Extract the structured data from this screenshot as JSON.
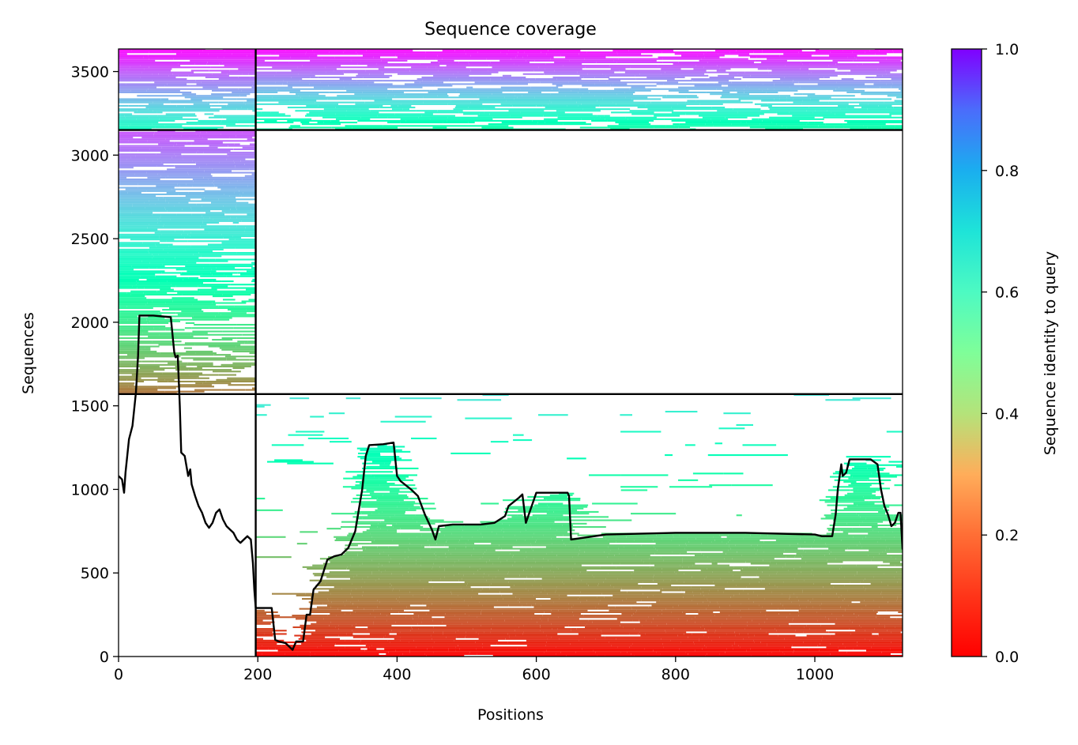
{
  "chart_data": {
    "type": "heatmap",
    "title": "Sequence coverage",
    "xlabel": "Positions",
    "ylabel": "Sequences",
    "xlim": [
      0,
      1126
    ],
    "ylim": [
      0,
      3635
    ],
    "x_ticks": [
      0,
      200,
      400,
      600,
      800,
      1000
    ],
    "y_ticks": [
      0,
      500,
      1000,
      1500,
      2000,
      2500,
      3000,
      3500
    ],
    "colorbar": {
      "label": "Sequence identity to query",
      "range": [
        0,
        1
      ],
      "ticks": [
        0.0,
        0.2,
        0.4,
        0.6,
        0.8,
        1.0
      ],
      "tick_labels": [
        "0.0",
        "0.2",
        "0.4",
        "0.6",
        "0.8",
        "1.0"
      ],
      "colormap": "rainbow_r"
    },
    "chain_boundaries": {
      "x": [
        197
      ],
      "y": [
        1570,
        3150
      ]
    },
    "msa_blocks": [
      {
        "x_range": [
          0,
          197
        ],
        "seq_range": [
          3150,
          3635
        ],
        "identity_range": [
          0.55,
          1.0
        ]
      },
      {
        "x_range": [
          197,
          1126
        ],
        "seq_range": [
          3150,
          3635
        ],
        "identity_range": [
          0.45,
          1.0
        ]
      },
      {
        "x_range": [
          0,
          197
        ],
        "seq_range": [
          1570,
          3150
        ],
        "identity_range": [
          0.15,
          0.9
        ]
      },
      {
        "x_range": [
          197,
          1126
        ],
        "seq_range": [
          0,
          1570
        ],
        "identity_range": [
          0.0,
          0.65
        ]
      }
    ],
    "coverage_line": {
      "x": [
        0,
        5,
        8,
        10,
        15,
        20,
        25,
        28,
        30,
        35,
        50,
        75,
        80,
        82,
        85,
        88,
        90,
        95,
        100,
        103,
        105,
        110,
        115,
        120,
        125,
        130,
        135,
        140,
        145,
        150,
        155,
        160,
        165,
        170,
        175,
        180,
        185,
        190,
        193,
        195,
        197,
        200,
        220,
        225,
        230,
        240,
        250,
        255,
        265,
        270,
        275,
        280,
        290,
        300,
        310,
        320,
        330,
        340,
        350,
        355,
        360,
        380,
        395,
        400,
        405,
        420,
        430,
        440,
        450,
        455,
        460,
        480,
        500,
        520,
        540,
        555,
        560,
        575,
        580,
        585,
        600,
        640,
        645,
        647,
        650,
        700,
        800,
        900,
        1000,
        1010,
        1015,
        1020,
        1025,
        1030,
        1033,
        1038,
        1040,
        1045,
        1050,
        1060,
        1080,
        1090,
        1095,
        1100,
        1105,
        1110,
        1115,
        1120,
        1123,
        1126
      ],
      "y": [
        1080,
        1060,
        980,
        1100,
        1300,
        1380,
        1580,
        1800,
        2040,
        2040,
        2040,
        2030,
        1820,
        1790,
        1800,
        1500,
        1220,
        1200,
        1080,
        1120,
        1030,
        960,
        900,
        860,
        800,
        770,
        800,
        860,
        880,
        820,
        780,
        760,
        740,
        700,
        680,
        700,
        720,
        700,
        560,
        400,
        290,
        290,
        290,
        100,
        90,
        80,
        40,
        90,
        90,
        250,
        250,
        400,
        450,
        580,
        600,
        610,
        650,
        750,
        1000,
        1200,
        1265,
        1270,
        1280,
        1080,
        1050,
        1000,
        960,
        850,
        760,
        700,
        780,
        790,
        790,
        790,
        800,
        840,
        900,
        950,
        970,
        800,
        980,
        980,
        980,
        960,
        700,
        730,
        740,
        740,
        730,
        720,
        720,
        720,
        720,
        850,
        1000,
        1150,
        1080,
        1100,
        1180,
        1180,
        1180,
        1150,
        1000,
        900,
        850,
        780,
        800,
        860,
        860,
        640
      ]
    }
  }
}
